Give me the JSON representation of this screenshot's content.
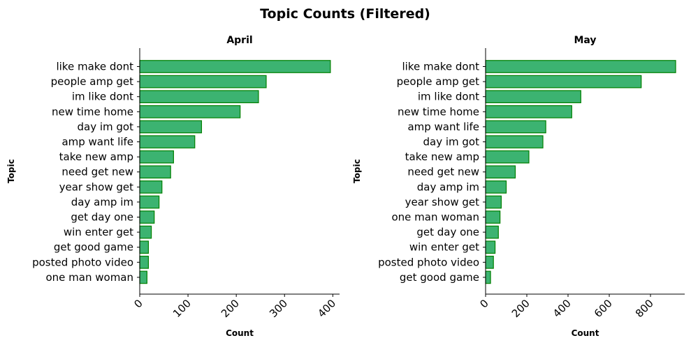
{
  "title": "Topic Counts (Filtered)",
  "colors": {
    "bar_fill": "#3cb371",
    "bar_edge": "#008000"
  },
  "chart_data": [
    {
      "type": "bar",
      "orientation": "horizontal",
      "title": "April",
      "xlabel": "Count",
      "ylabel": "Topic",
      "xlim": [
        0,
        414
      ],
      "xticks": [
        0,
        100,
        200,
        300,
        400
      ],
      "grid": false,
      "categories": [
        "like make dont",
        "people amp get",
        "im like dont",
        "new time home",
        "day im got",
        "amp want life",
        "take new amp",
        "need get new",
        "year show get",
        "day amp im",
        "get day one",
        "win enter get",
        "get good game",
        "posted photo video",
        "one man woman"
      ],
      "values": [
        395,
        262,
        246,
        208,
        128,
        114,
        70,
        64,
        46,
        40,
        30,
        24,
        18,
        18,
        15
      ]
    },
    {
      "type": "bar",
      "orientation": "horizontal",
      "title": "May",
      "xlabel": "Count",
      "ylabel": "Topic",
      "xlim": [
        0,
        966
      ],
      "xticks": [
        0,
        200,
        400,
        600,
        800
      ],
      "grid": false,
      "categories": [
        "like make dont",
        "people amp get",
        "im like dont",
        "new time home",
        "amp want life",
        "day im got",
        "take new amp",
        "need get new",
        "day amp im",
        "year show get",
        "one man woman",
        "get day one",
        "win enter get",
        "posted photo video",
        "get good game"
      ],
      "values": [
        922,
        755,
        462,
        418,
        292,
        278,
        210,
        144,
        100,
        76,
        70,
        62,
        46,
        38,
        24
      ]
    }
  ]
}
